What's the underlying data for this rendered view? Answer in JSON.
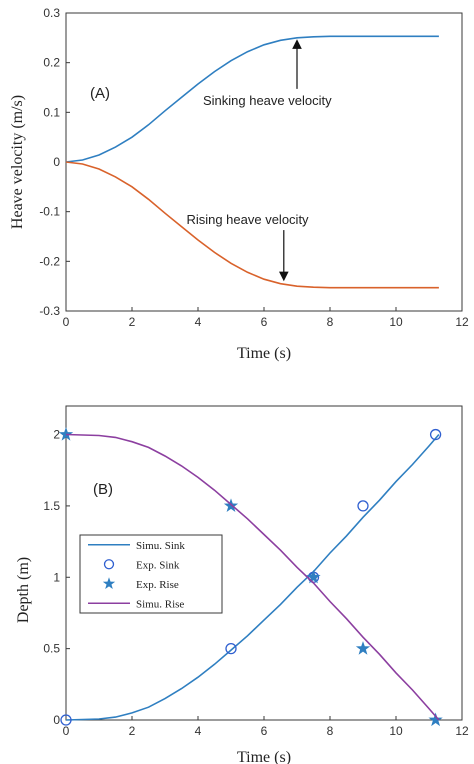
{
  "chart_data": [
    {
      "type": "line",
      "panel_label": "(A)",
      "xlabel": "Time (s)",
      "ylabel": "Heave velocity (m/s)",
      "xlim": [
        0,
        12
      ],
      "ylim": [
        -0.3,
        0.3
      ],
      "xticks": [
        0,
        2,
        4,
        6,
        8,
        10,
        12
      ],
      "yticks": [
        0.3,
        0.2,
        0.1,
        0,
        -0.1,
        -0.2,
        -0.3
      ],
      "ytick_labels": [
        "0.3",
        "0.2",
        "0.1",
        "0",
        "-0.1",
        "-0.2",
        "-0.3"
      ],
      "grid": false,
      "series": [
        {
          "color": "#2f7fc1",
          "x": [
            0,
            0.5,
            1,
            1.5,
            2,
            2.5,
            3,
            3.5,
            4,
            4.5,
            5,
            5.5,
            6,
            6.5,
            7,
            7.5,
            8,
            9,
            10,
            11.3
          ],
          "values": [
            0,
            0.004,
            0.014,
            0.03,
            0.05,
            0.075,
            0.103,
            0.13,
            0.157,
            0.182,
            0.204,
            0.222,
            0.236,
            0.245,
            0.25,
            0.252,
            0.253,
            0.253,
            0.253,
            0.253
          ]
        },
        {
          "color": "#d9622b",
          "x": [
            0,
            0.5,
            1,
            1.5,
            2,
            2.5,
            3,
            3.5,
            4,
            4.5,
            5,
            5.5,
            6,
            6.5,
            7,
            7.5,
            8,
            9,
            10,
            11.3
          ],
          "values": [
            0,
            -0.004,
            -0.014,
            -0.03,
            -0.05,
            -0.075,
            -0.103,
            -0.13,
            -0.157,
            -0.182,
            -0.204,
            -0.222,
            -0.236,
            -0.245,
            -0.25,
            -0.252,
            -0.253,
            -0.253,
            -0.253,
            -0.253
          ]
        }
      ],
      "annotations": [
        {
          "text": "Sinking heave velocity",
          "x": 6.1,
          "y": 0.115,
          "arrow_to": [
            7.0,
            0.252
          ]
        },
        {
          "text": "Rising heave velocity",
          "x": 5.5,
          "y": -0.125,
          "arrow_to": [
            6.6,
            -0.245
          ]
        }
      ]
    },
    {
      "type": "line",
      "panel_label": "(B)",
      "xlabel": "Time (s)",
      "ylabel": "Depth (m)",
      "xlim": [
        0,
        12
      ],
      "ylim": [
        0,
        2.2
      ],
      "xticks": [
        0,
        2,
        4,
        6,
        8,
        10,
        12
      ],
      "yticks": [
        0,
        0.5,
        1,
        1.5,
        2
      ],
      "ytick_labels": [
        "0",
        "0.5",
        "1",
        "1.5",
        "2"
      ],
      "grid": false,
      "legend_position": "middle-left",
      "series": [
        {
          "name": "Simu. Sink",
          "style": "line",
          "color": "#2f7fc1",
          "x": [
            0,
            1,
            1.5,
            2,
            2.5,
            3,
            3.5,
            4,
            4.5,
            5,
            5.5,
            6,
            6.5,
            7,
            7.5,
            8,
            8.5,
            9,
            9.5,
            10,
            10.5,
            11,
            11.3
          ],
          "values": [
            0,
            0.007,
            0.02,
            0.05,
            0.09,
            0.15,
            0.22,
            0.3,
            0.39,
            0.49,
            0.59,
            0.7,
            0.81,
            0.93,
            1.04,
            1.17,
            1.29,
            1.42,
            1.54,
            1.67,
            1.79,
            1.92,
            2.0
          ]
        },
        {
          "name": "Exp. Sink",
          "style": "circle",
          "color": "#2f5fd0",
          "x": [
            0,
            5,
            7.5,
            9,
            11.2
          ],
          "values": [
            0,
            0.5,
            1.0,
            1.5,
            2.0
          ]
        },
        {
          "name": "Exp. Rise",
          "style": "star",
          "color": "#2f7fc1",
          "x": [
            0,
            5,
            7.5,
            9,
            11.2
          ],
          "values": [
            2.0,
            1.5,
            1.0,
            0.5,
            0
          ]
        },
        {
          "name": "Simu. Rise",
          "style": "line",
          "color": "#8c3fa0",
          "x": [
            0,
            1,
            1.5,
            2,
            2.5,
            3,
            3.5,
            4,
            4.5,
            5,
            5.5,
            6,
            6.5,
            7,
            7.5,
            8,
            8.5,
            9,
            9.5,
            10,
            10.5,
            11,
            11.3
          ],
          "values": [
            2.0,
            1.993,
            1.98,
            1.95,
            1.91,
            1.85,
            1.78,
            1.7,
            1.61,
            1.51,
            1.41,
            1.3,
            1.19,
            1.07,
            0.96,
            0.83,
            0.71,
            0.58,
            0.46,
            0.33,
            0.21,
            0.08,
            0
          ]
        }
      ]
    }
  ]
}
